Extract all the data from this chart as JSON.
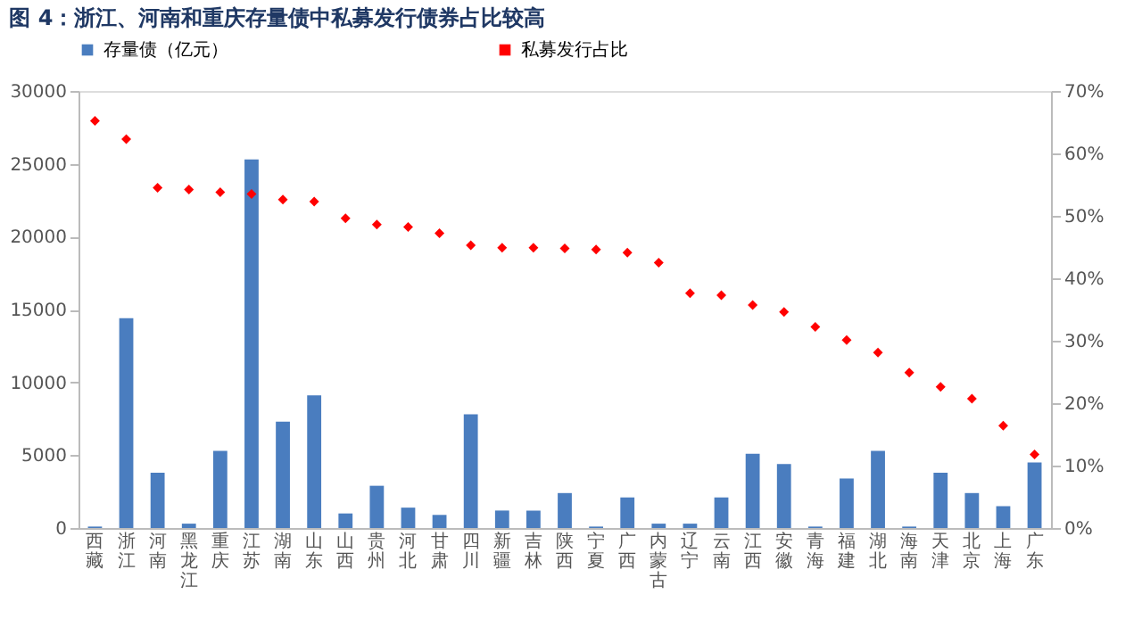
{
  "chart_data": {
    "type": "bar",
    "title": "图 4：浙江、河南和重庆存量债中私募发行债券占比较高",
    "categories": [
      "西藏",
      "浙江",
      "河南",
      "黑龙江",
      "重庆",
      "江苏",
      "湖南",
      "山东",
      "山西",
      "贵州",
      "河北",
      "甘肃",
      "四川",
      "新疆",
      "吉林",
      "陕西",
      "宁夏",
      "广西",
      "内蒙古",
      "辽宁",
      "云南",
      "江西",
      "安徽",
      "青海",
      "福建",
      "湖北",
      "海南",
      "天津",
      "北京",
      "上海",
      "广东"
    ],
    "series": [
      {
        "name": "存量债（亿元）",
        "color": "#4a7dbf",
        "values": [
          100,
          14400,
          3800,
          300,
          5300,
          25300,
          7300,
          9100,
          1000,
          2900,
          1400,
          900,
          7800,
          1200,
          1200,
          2400,
          100,
          2100,
          300,
          300,
          2100,
          5100,
          4400,
          100,
          3400,
          5300,
          100,
          3800,
          2400,
          1500,
          4500
        ]
      },
      {
        "name": "私募发行占比",
        "type": "scatter",
        "axis": "y2",
        "marker": "diamond",
        "color": "#ff0000",
        "values": [
          65.2,
          62.3,
          54.5,
          54.2,
          53.8,
          53.5,
          52.6,
          52.3,
          49.6,
          48.6,
          48.2,
          47.2,
          45.3,
          44.9,
          44.9,
          44.8,
          44.6,
          44.1,
          42.5,
          37.6,
          37.3,
          35.7,
          34.6,
          32.2,
          30.1,
          28.1,
          24.9,
          22.6,
          20.7,
          16.4,
          11.8
        ]
      }
    ],
    "ylim": [
      0,
      30000
    ],
    "yticks": [
      0,
      5000,
      10000,
      15000,
      20000,
      25000,
      30000
    ],
    "y2lim": [
      0,
      70
    ],
    "y2ticks": [
      {
        "value": 0,
        "label": "0%"
      },
      {
        "value": 10,
        "label": "10%"
      },
      {
        "value": 20,
        "label": "20%"
      },
      {
        "value": 30,
        "label": "30%"
      },
      {
        "value": 40,
        "label": "40%"
      },
      {
        "value": 50,
        "label": "50%"
      },
      {
        "value": 60,
        "label": "60%"
      },
      {
        "value": 70,
        "label": "70%"
      }
    ],
    "grid": false,
    "legend": "top"
  }
}
